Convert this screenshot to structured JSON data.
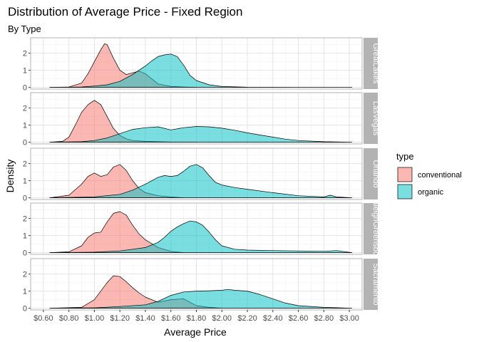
{
  "chart_data": {
    "type": "area",
    "title": "Distribution of Average Price - Fixed Region",
    "subtitle": "By Type",
    "xlabel": "Average Price",
    "ylabel": "Density",
    "xlim": [
      0.5,
      3.1
    ],
    "ylim": [
      -0.1,
      2.9
    ],
    "x_ticks": [
      0.6,
      0.8,
      1.0,
      1.2,
      1.4,
      1.6,
      1.8,
      2.0,
      2.2,
      2.4,
      2.6,
      2.8,
      3.0
    ],
    "x_tick_labels": [
      "$0.60",
      "$0.80",
      "$1.00",
      "$1.20",
      "$1.40",
      "$1.60",
      "$1.80",
      "$2.00",
      "$2.20",
      "$2.40",
      "$2.60",
      "$2.80",
      "$3.00"
    ],
    "y_ticks": [
      0,
      1,
      2
    ],
    "grid": true,
    "legend": {
      "title": "type",
      "position": "right",
      "entries": [
        {
          "label": "conventional",
          "color": "#F8766D"
        },
        {
          "label": "organic",
          "color": "#00BFC4"
        }
      ]
    },
    "panels": [
      {
        "region": "GreatLakes",
        "series": [
          {
            "name": "conventional",
            "x": [
              0.65,
              0.8,
              0.9,
              0.95,
              1.0,
              1.05,
              1.08,
              1.1,
              1.15,
              1.2,
              1.25,
              1.3,
              1.35,
              1.4,
              1.45,
              1.5,
              1.6,
              1.7,
              1.8
            ],
            "y": [
              0.0,
              0.02,
              0.25,
              0.8,
              1.5,
              2.2,
              2.55,
              2.5,
              1.7,
              1.0,
              0.75,
              0.85,
              0.95,
              0.8,
              0.5,
              0.2,
              0.05,
              0.02,
              0.0
            ]
          },
          {
            "name": "organic",
            "x": [
              0.65,
              0.9,
              1.0,
              1.1,
              1.2,
              1.3,
              1.4,
              1.45,
              1.5,
              1.55,
              1.6,
              1.65,
              1.7,
              1.75,
              1.8,
              1.9,
              2.0,
              2.2,
              2.6,
              3.02
            ],
            "y": [
              0.0,
              0.02,
              0.08,
              0.15,
              0.35,
              0.75,
              1.25,
              1.55,
              1.8,
              1.9,
              1.95,
              1.8,
              1.3,
              0.7,
              0.4,
              0.15,
              0.05,
              0.01,
              0.0,
              0.0
            ]
          }
        ]
      },
      {
        "region": "LasVegas",
        "series": [
          {
            "name": "conventional",
            "x": [
              0.65,
              0.75,
              0.8,
              0.85,
              0.9,
              0.95,
              1.0,
              1.05,
              1.1,
              1.15,
              1.2,
              1.25,
              1.3,
              1.4,
              1.5,
              1.6,
              1.8
            ],
            "y": [
              0.0,
              0.05,
              0.3,
              1.0,
              1.75,
              2.2,
              2.45,
              2.2,
              1.5,
              0.8,
              0.4,
              0.2,
              0.1,
              0.05,
              0.03,
              0.01,
              0.0
            ]
          },
          {
            "name": "organic",
            "x": [
              0.65,
              0.9,
              1.0,
              1.1,
              1.2,
              1.3,
              1.4,
              1.5,
              1.6,
              1.7,
              1.8,
              1.9,
              2.0,
              2.1,
              2.2,
              2.3,
              2.4,
              2.5,
              2.6,
              2.8,
              3.02
            ],
            "y": [
              0.0,
              0.03,
              0.1,
              0.25,
              0.5,
              0.75,
              0.85,
              0.9,
              0.72,
              0.85,
              0.92,
              0.9,
              0.82,
              0.7,
              0.55,
              0.42,
              0.3,
              0.18,
              0.1,
              0.03,
              0.0
            ]
          }
        ]
      },
      {
        "region": "Orlando",
        "series": [
          {
            "name": "conventional",
            "x": [
              0.65,
              0.8,
              0.9,
              0.95,
              1.0,
              1.05,
              1.1,
              1.15,
              1.2,
              1.25,
              1.3,
              1.35,
              1.4,
              1.5,
              1.6,
              1.7
            ],
            "y": [
              0.0,
              0.15,
              0.8,
              1.25,
              1.45,
              1.25,
              1.35,
              1.8,
              1.95,
              1.6,
              1.0,
              0.55,
              0.3,
              0.12,
              0.05,
              0.0
            ]
          },
          {
            "name": "organic",
            "x": [
              0.65,
              1.0,
              1.2,
              1.3,
              1.4,
              1.5,
              1.55,
              1.6,
              1.65,
              1.7,
              1.75,
              1.8,
              1.85,
              1.9,
              1.95,
              2.0,
              2.1,
              2.2,
              2.4,
              2.6,
              2.8,
              2.85,
              2.9,
              3.02
            ],
            "y": [
              0.0,
              0.05,
              0.2,
              0.45,
              0.8,
              1.2,
              1.3,
              1.25,
              1.3,
              1.55,
              1.85,
              1.95,
              1.75,
              1.3,
              0.9,
              0.75,
              0.6,
              0.5,
              0.3,
              0.12,
              0.05,
              0.15,
              0.05,
              0.0
            ]
          }
        ]
      },
      {
        "region": "RaleighGreensboro",
        "series": [
          {
            "name": "conventional",
            "x": [
              0.65,
              0.8,
              0.9,
              0.95,
              1.0,
              1.05,
              1.1,
              1.15,
              1.2,
              1.25,
              1.3,
              1.35,
              1.4,
              1.5,
              1.6,
              1.7
            ],
            "y": [
              0.0,
              0.05,
              0.4,
              0.9,
              1.15,
              1.2,
              1.8,
              2.3,
              2.4,
              2.2,
              1.6,
              1.1,
              0.75,
              0.3,
              0.08,
              0.0
            ]
          },
          {
            "name": "organic",
            "x": [
              0.65,
              1.0,
              1.2,
              1.3,
              1.4,
              1.5,
              1.55,
              1.6,
              1.65,
              1.7,
              1.75,
              1.8,
              1.85,
              1.9,
              1.95,
              2.0,
              2.1,
              2.2,
              2.4,
              2.6,
              2.8,
              2.9,
              3.02
            ],
            "y": [
              0.0,
              0.03,
              0.1,
              0.2,
              0.3,
              0.6,
              0.9,
              1.25,
              1.5,
              1.7,
              1.85,
              1.8,
              1.6,
              1.2,
              0.75,
              0.4,
              0.2,
              0.15,
              0.12,
              0.1,
              0.08,
              0.12,
              0.0
            ]
          }
        ]
      },
      {
        "region": "Sacramento",
        "series": [
          {
            "name": "conventional",
            "x": [
              0.65,
              0.9,
              1.0,
              1.05,
              1.1,
              1.15,
              1.2,
              1.25,
              1.3,
              1.35,
              1.4,
              1.5,
              1.6,
              1.7,
              1.8,
              1.9,
              2.0
            ],
            "y": [
              0.0,
              0.05,
              0.5,
              1.0,
              1.5,
              1.9,
              1.85,
              1.55,
              1.2,
              0.9,
              0.65,
              0.35,
              0.5,
              0.55,
              0.15,
              0.05,
              0.0
            ]
          },
          {
            "name": "organic",
            "x": [
              0.65,
              1.0,
              1.2,
              1.4,
              1.5,
              1.6,
              1.7,
              1.8,
              1.9,
              2.0,
              2.05,
              2.1,
              2.2,
              2.3,
              2.4,
              2.5,
              2.6,
              2.8,
              3.02
            ],
            "y": [
              0.0,
              0.02,
              0.1,
              0.2,
              0.4,
              0.75,
              0.95,
              1.0,
              1.02,
              1.05,
              1.1,
              1.05,
              1.0,
              0.8,
              0.55,
              0.3,
              0.15,
              0.05,
              0.0
            ]
          }
        ]
      }
    ]
  }
}
